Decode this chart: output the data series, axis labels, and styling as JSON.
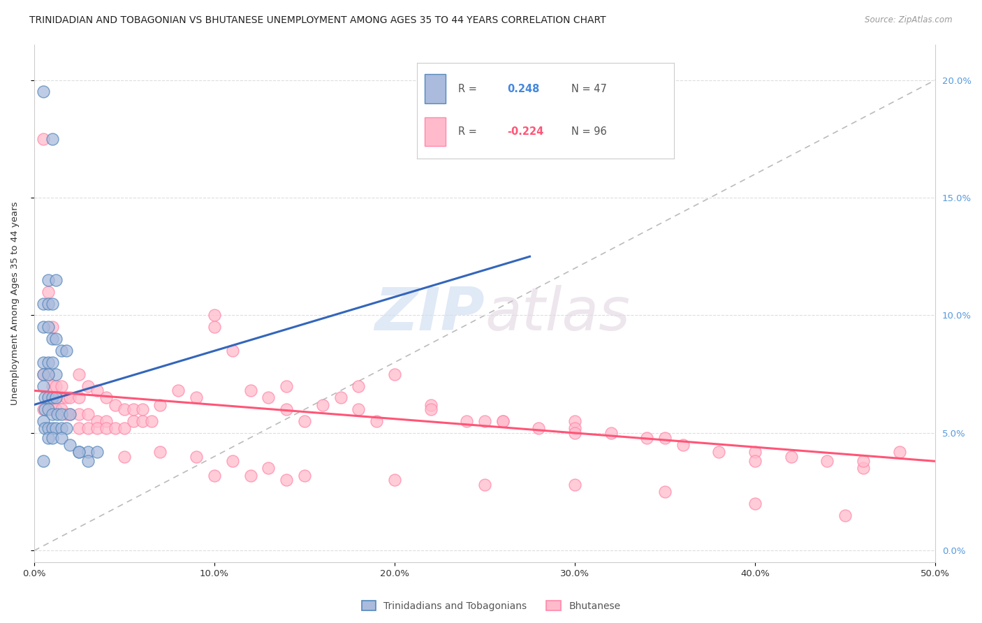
{
  "title": "TRINIDADIAN AND TOBAGONIAN VS BHUTANESE UNEMPLOYMENT AMONG AGES 35 TO 44 YEARS CORRELATION CHART",
  "source": "Source: ZipAtlas.com",
  "ylabel": "Unemployment Among Ages 35 to 44 years",
  "xlim": [
    0.0,
    0.5
  ],
  "ylim": [
    -0.005,
    0.215
  ],
  "xticks": [
    0.0,
    0.1,
    0.2,
    0.3,
    0.4,
    0.5
  ],
  "xticklabels": [
    "0.0%",
    "10.0%",
    "20.0%",
    "30.0%",
    "40.0%",
    "50.0%"
  ],
  "yticks_right": [
    0.0,
    0.05,
    0.1,
    0.15,
    0.2
  ],
  "yticklabels_right": [
    "0.0%",
    "5.0%",
    "10.0%",
    "15.0%",
    "20.0%"
  ],
  "blue_color": "#aabbdd",
  "pink_color": "#ffbbcc",
  "blue_edge": "#5588bb",
  "pink_edge": "#ff88aa",
  "legend_r_blue": "R =  0.248",
  "legend_n_blue": "N = 47",
  "legend_r_pink": "R = -0.224",
  "legend_n_pink": "N = 96",
  "legend_label_blue": "Trinidadians and Tobagonians",
  "legend_label_pink": "Bhutanese",
  "watermark_zip": "ZIP",
  "watermark_atlas": "atlas",
  "blue_scatter_x": [
    0.005,
    0.01,
    0.008,
    0.012,
    0.005,
    0.008,
    0.01,
    0.005,
    0.008,
    0.01,
    0.012,
    0.015,
    0.018,
    0.005,
    0.008,
    0.01,
    0.012,
    0.005,
    0.008,
    0.005,
    0.006,
    0.008,
    0.01,
    0.012,
    0.006,
    0.008,
    0.01,
    0.013,
    0.015,
    0.005,
    0.006,
    0.008,
    0.01,
    0.012,
    0.015,
    0.018,
    0.02,
    0.008,
    0.01,
    0.015,
    0.02,
    0.025,
    0.03,
    0.035,
    0.005,
    0.025,
    0.03
  ],
  "blue_scatter_y": [
    0.195,
    0.175,
    0.115,
    0.115,
    0.105,
    0.105,
    0.105,
    0.095,
    0.095,
    0.09,
    0.09,
    0.085,
    0.085,
    0.08,
    0.08,
    0.08,
    0.075,
    0.075,
    0.075,
    0.07,
    0.065,
    0.065,
    0.065,
    0.065,
    0.06,
    0.06,
    0.058,
    0.058,
    0.058,
    0.055,
    0.052,
    0.052,
    0.052,
    0.052,
    0.052,
    0.052,
    0.058,
    0.048,
    0.048,
    0.048,
    0.045,
    0.042,
    0.042,
    0.042,
    0.038,
    0.042,
    0.038
  ],
  "pink_scatter_x": [
    0.005,
    0.008,
    0.01,
    0.005,
    0.008,
    0.01,
    0.012,
    0.015,
    0.008,
    0.012,
    0.015,
    0.018,
    0.02,
    0.025,
    0.005,
    0.01,
    0.012,
    0.015,
    0.018,
    0.02,
    0.025,
    0.03,
    0.035,
    0.04,
    0.025,
    0.03,
    0.035,
    0.04,
    0.045,
    0.05,
    0.055,
    0.06,
    0.065,
    0.025,
    0.03,
    0.035,
    0.04,
    0.045,
    0.05,
    0.055,
    0.06,
    0.07,
    0.08,
    0.09,
    0.1,
    0.11,
    0.12,
    0.13,
    0.14,
    0.15,
    0.16,
    0.17,
    0.18,
    0.19,
    0.2,
    0.22,
    0.24,
    0.26,
    0.28,
    0.3,
    0.32,
    0.34,
    0.36,
    0.38,
    0.4,
    0.42,
    0.44,
    0.46,
    0.1,
    0.14,
    0.18,
    0.22,
    0.26,
    0.3,
    0.05,
    0.07,
    0.09,
    0.11,
    0.13,
    0.15,
    0.2,
    0.25,
    0.3,
    0.35,
    0.4,
    0.45,
    0.25,
    0.3,
    0.35,
    0.4,
    0.46,
    0.48,
    0.1,
    0.12,
    0.14
  ],
  "pink_scatter_y": [
    0.175,
    0.11,
    0.095,
    0.075,
    0.075,
    0.07,
    0.07,
    0.07,
    0.065,
    0.065,
    0.065,
    0.065,
    0.065,
    0.065,
    0.06,
    0.06,
    0.06,
    0.06,
    0.058,
    0.058,
    0.058,
    0.058,
    0.055,
    0.055,
    0.052,
    0.052,
    0.052,
    0.052,
    0.052,
    0.052,
    0.055,
    0.055,
    0.055,
    0.075,
    0.07,
    0.068,
    0.065,
    0.062,
    0.06,
    0.06,
    0.06,
    0.062,
    0.068,
    0.065,
    0.1,
    0.085,
    0.068,
    0.065,
    0.06,
    0.055,
    0.062,
    0.065,
    0.06,
    0.055,
    0.075,
    0.062,
    0.055,
    0.055,
    0.052,
    0.055,
    0.05,
    0.048,
    0.045,
    0.042,
    0.042,
    0.04,
    0.038,
    0.035,
    0.095,
    0.07,
    0.07,
    0.06,
    0.055,
    0.052,
    0.04,
    0.042,
    0.04,
    0.038,
    0.035,
    0.032,
    0.03,
    0.028,
    0.028,
    0.025,
    0.02,
    0.015,
    0.055,
    0.05,
    0.048,
    0.038,
    0.038,
    0.042,
    0.032,
    0.032,
    0.03
  ],
  "blue_trend_x": [
    0.0,
    0.275
  ],
  "blue_trend_y": [
    0.062,
    0.125
  ],
  "pink_trend_x": [
    0.0,
    0.5
  ],
  "pink_trend_y": [
    0.068,
    0.038
  ],
  "ref_line_x": [
    0.0,
    0.5
  ],
  "ref_line_y": [
    0.0,
    0.2
  ],
  "background_color": "#ffffff",
  "grid_color": "#dddddd"
}
